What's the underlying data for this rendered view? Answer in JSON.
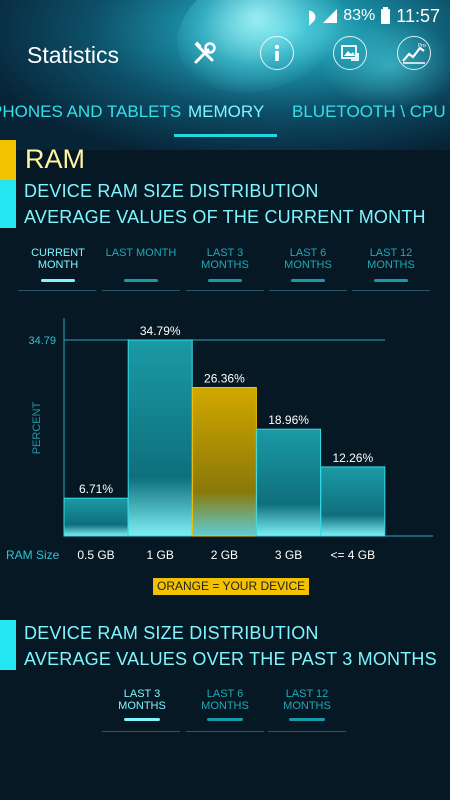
{
  "status_bar": {
    "battery": "83%",
    "time": "11:57"
  },
  "header": {
    "title": "Statistics",
    "icons": [
      "tools-icon",
      "info-icon",
      "screenshot-icon",
      "pro-chart-icon"
    ]
  },
  "tabs": [
    {
      "label": "PHONES AND TABLETS"
    },
    {
      "label": "MEMORY"
    },
    {
      "label": "BLUETOOTH \\ CPU \\"
    }
  ],
  "ram": {
    "title": "RAM",
    "section1": {
      "line1": "DEVICE RAM SIZE DISTRIBUTION",
      "line2": "AVERAGE VALUES OF THE CURRENT MONTH"
    },
    "period_tabs": [
      {
        "line1": "CURRENT",
        "line2": "MONTH"
      },
      {
        "line1": "LAST MONTH",
        "line2": ""
      },
      {
        "line1": "LAST 3",
        "line2": "MONTHS"
      },
      {
        "line1": "LAST 6",
        "line2": "MONTHS"
      },
      {
        "line1": "LAST 12",
        "line2": "MONTHS"
      }
    ],
    "legend": "ORANGE = YOUR DEVICE",
    "section2": {
      "line1": "DEVICE RAM SIZE DISTRIBUTION",
      "line2": "AVERAGE VALUES OVER THE PAST 3 MONTHS"
    },
    "period_tabs2": [
      {
        "line1": "LAST 3",
        "line2": "MONTHS"
      },
      {
        "line1": "LAST 6",
        "line2": "MONTHS"
      },
      {
        "line1": "LAST 12",
        "line2": "MONTHS"
      }
    ]
  },
  "colors": {
    "accent": "#24d6e2",
    "highlight": "#f2c200",
    "bar": "#1b9aa6",
    "background": "#061824"
  },
  "chart_data": {
    "type": "bar",
    "categories": [
      "0.5 GB",
      "1 GB",
      "2 GB",
      "3 GB",
      "<= 4 GB"
    ],
    "values": [
      6.71,
      34.79,
      26.36,
      18.96,
      12.26
    ],
    "value_labels": [
      "6.71%",
      "34.79%",
      "26.36%",
      "18.96%",
      "12.26%"
    ],
    "highlight_index": 2,
    "xlabel": "RAM Size",
    "ylabel": "PERCENT",
    "max_tick": "34.79",
    "ylim": [
      0,
      40
    ],
    "grid": false
  }
}
